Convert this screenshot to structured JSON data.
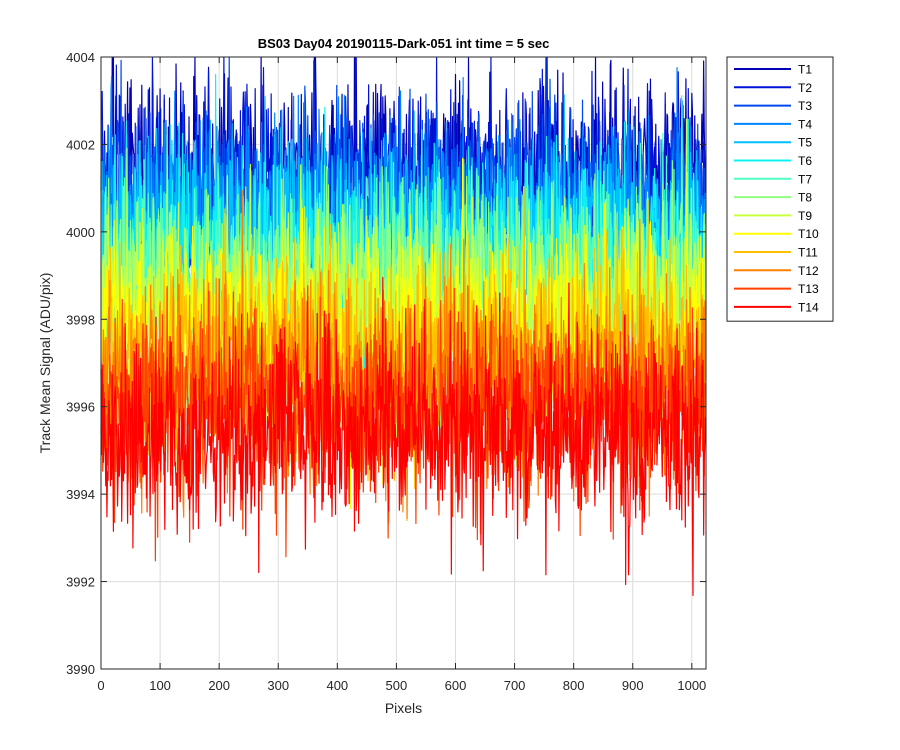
{
  "chart_data": {
    "type": "line",
    "title": "BS03 Day04 20190115-Dark-051 int time = 5 sec",
    "xlabel": "Pixels",
    "ylabel": "Track Mean Signal (ADU/pix)",
    "xlim": [
      0,
      1024
    ],
    "ylim": [
      3990,
      4004
    ],
    "xticks": [
      0,
      100,
      200,
      300,
      400,
      500,
      600,
      700,
      800,
      900,
      1000
    ],
    "yticks": [
      3990,
      3992,
      3994,
      3996,
      3998,
      4000,
      4002,
      4004
    ],
    "grid": true,
    "legend_position": "outside-top-right",
    "n_points": 1024,
    "noise_ptp_approx": 4.5,
    "series": [
      {
        "name": "T1",
        "mean": 4001.3,
        "color": "#0000b4"
      },
      {
        "name": "T2",
        "mean": 4001.0,
        "color": "#0014d8"
      },
      {
        "name": "T3",
        "mean": 4000.6,
        "color": "#0048f0"
      },
      {
        "name": "T4",
        "mean": 4000.2,
        "color": "#0084ff"
      },
      {
        "name": "T5",
        "mean": 3999.8,
        "color": "#00c0ff"
      },
      {
        "name": "T6",
        "mean": 3999.4,
        "color": "#10f0f0"
      },
      {
        "name": "T7",
        "mean": 3999.0,
        "color": "#50ffc0"
      },
      {
        "name": "T8",
        "mean": 3998.6,
        "color": "#90ff80"
      },
      {
        "name": "T9",
        "mean": 3998.2,
        "color": "#c8ff40"
      },
      {
        "name": "T10",
        "mean": 3997.8,
        "color": "#ffff00"
      },
      {
        "name": "T11",
        "mean": 3997.2,
        "color": "#ffc000"
      },
      {
        "name": "T12",
        "mean": 3996.6,
        "color": "#ff8000"
      },
      {
        "name": "T13",
        "mean": 3996.0,
        "color": "#ff4000"
      },
      {
        "name": "T14",
        "mean": 3995.4,
        "color": "#ff0000"
      }
    ]
  }
}
